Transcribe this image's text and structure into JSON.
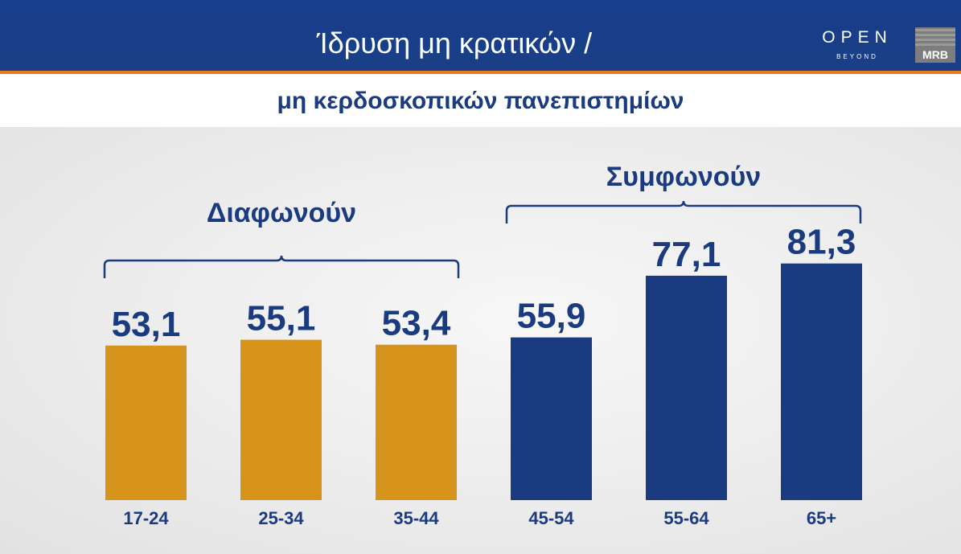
{
  "header": {
    "title_line1": "Ίδρυση μη κρατικών /",
    "title_line2": "μη κερδοσκοπικών πανεπιστημίων"
  },
  "logos": {
    "open_text": "OPEN",
    "open_sub": "BEYOND",
    "mrb_text": "MRB"
  },
  "groups": {
    "disagree_label": "Διαφωνούν",
    "agree_label": "Συμφωνούν"
  },
  "colors": {
    "header_blue": "#173e8c",
    "disagree": "#d6941c",
    "agree": "#1a3b80",
    "accent_line": "#e87a1e"
  },
  "chart_data": {
    "type": "bar",
    "title": "Ίδρυση μη κρατικών / μη κερδοσκοπικών πανεπιστημίων",
    "categories": [
      "17-24",
      "25-34",
      "35-44",
      "45-54",
      "55-64",
      "65+"
    ],
    "values": [
      53.1,
      55.1,
      53.4,
      55.9,
      77.1,
      81.3
    ],
    "value_labels": [
      "53,1",
      "55,1",
      "53,4",
      "55,9",
      "77,1",
      "81,3"
    ],
    "bar_groups": [
      "Διαφωνούν",
      "Διαφωνούν",
      "Διαφωνούν",
      "Συμφωνούν",
      "Συμφωνούν",
      "Συμφωνούν"
    ],
    "ylim": [
      0,
      100
    ],
    "grid": false,
    "xlabel": "",
    "ylabel": ""
  }
}
